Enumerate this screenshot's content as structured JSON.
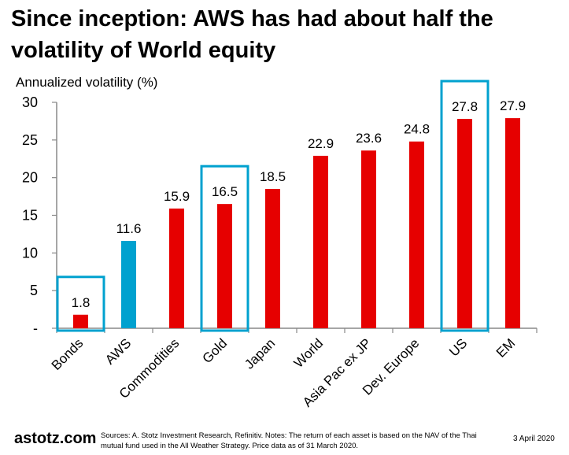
{
  "title": "Since inception: AWS has had about half the volatility of World equity",
  "footer": {
    "logo": "astotz.com",
    "sources": "Sources: A. Stotz Investment Research, Refinitiv. Notes: The return of each asset is based on the NAV of the Thai mutual fund used in the All Weather Strategy. Price data as of 31 March 2020.",
    "date": "3 April 2020"
  },
  "chart_data": {
    "type": "bar",
    "title": "Since inception: AWS has had about half the volatility of World equity",
    "ylabel": "Annualized volatility (%)",
    "xlabel": "",
    "ylim": [
      0,
      30
    ],
    "yticks": [
      {
        "v": 0,
        "label": "-"
      },
      {
        "v": 5,
        "label": "5"
      },
      {
        "v": 10,
        "label": "10"
      },
      {
        "v": 15,
        "label": "15"
      },
      {
        "v": 20,
        "label": "20"
      },
      {
        "v": 25,
        "label": "25"
      },
      {
        "v": 30,
        "label": "30"
      }
    ],
    "categories": [
      "Bonds",
      "AWS",
      "Commodities",
      "Gold",
      "Japan",
      "World",
      "Asia Pac ex JP",
      "Dev. Europe",
      "US",
      "EM"
    ],
    "values": [
      1.8,
      11.6,
      15.9,
      16.5,
      18.5,
      22.9,
      23.6,
      24.8,
      27.8,
      27.9
    ],
    "value_labels": [
      "1.8",
      "11.6",
      "15.9",
      "16.5",
      "18.5",
      "22.9",
      "23.6",
      "24.8",
      "27.8",
      "27.9"
    ],
    "highlighted_bar": "AWS",
    "boxed_categories": [
      "Bonds",
      "Gold",
      "US"
    ],
    "grid": false,
    "colors": {
      "default": "#e60000",
      "highlight": "#00a1cf",
      "box": "#00a1cf"
    }
  }
}
